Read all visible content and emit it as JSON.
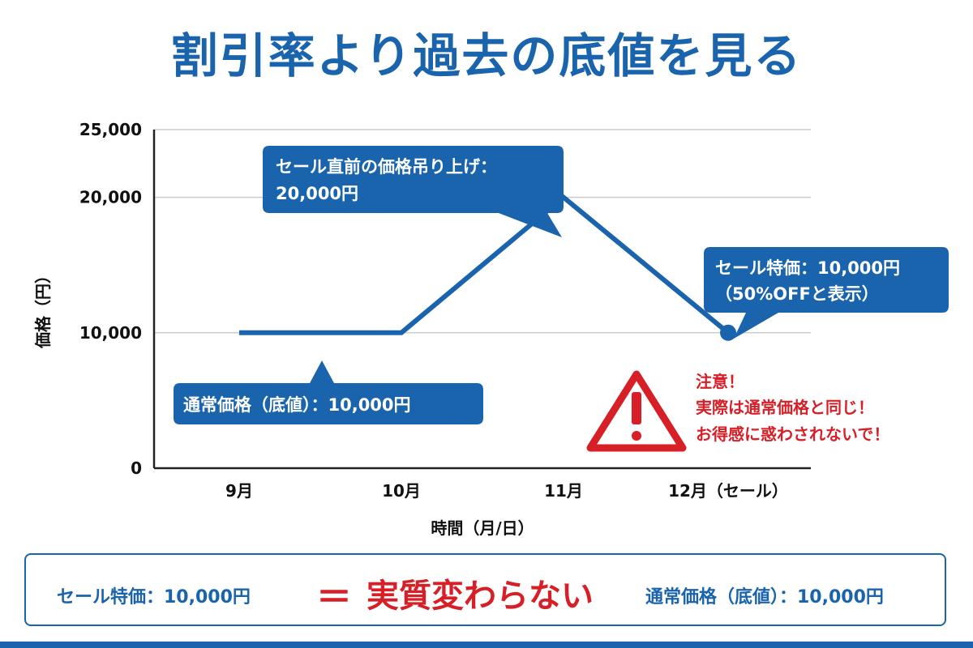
{
  "title": "割引率より過去の底値を見る",
  "colors": {
    "brand": "#1a63ad",
    "warning": "#d61f26",
    "line": "#1a63ad",
    "grid": "#cccccc"
  },
  "chart_data": {
    "type": "line",
    "title": "割引率より過去の底値を見る",
    "xlabel": "時間（月/日）",
    "ylabel": "価格（円）",
    "categories": [
      "9月",
      "10月",
      "11月",
      "12月（セール）"
    ],
    "series": [
      {
        "values": [
          10000,
          10000,
          20000,
          10000
        ]
      }
    ],
    "ylim": [
      0,
      25000
    ],
    "y_ticks": [
      0,
      10000,
      20000,
      25000
    ],
    "y_tick_labels": [
      "0",
      "10,000",
      "20,000",
      "25,000"
    ],
    "grid": true,
    "annotations": [
      {
        "lines": [
          "セール直前の価格吊り上げ：",
          "20,000円"
        ],
        "target_x": "11月",
        "target_y": 20000
      },
      {
        "lines": [
          "セール特価：10,000円",
          "（50%OFFと表示）"
        ],
        "target_x": "12月（セール）",
        "target_y": 10000
      },
      {
        "lines": [
          "通常価格（底値）：10,000円"
        ],
        "target_x": "9月",
        "target_y": 10000
      }
    ],
    "warning": {
      "icon": "warning-triangle-icon",
      "lines": [
        "注意！",
        "実際は通常価格と同じ！",
        "お得感に惑わされないで！"
      ]
    }
  },
  "summary": {
    "left": "セール特価：10,000円",
    "equals": "＝",
    "middle": "実質変わらない",
    "right": "通常価格（底値）：10,000円"
  }
}
